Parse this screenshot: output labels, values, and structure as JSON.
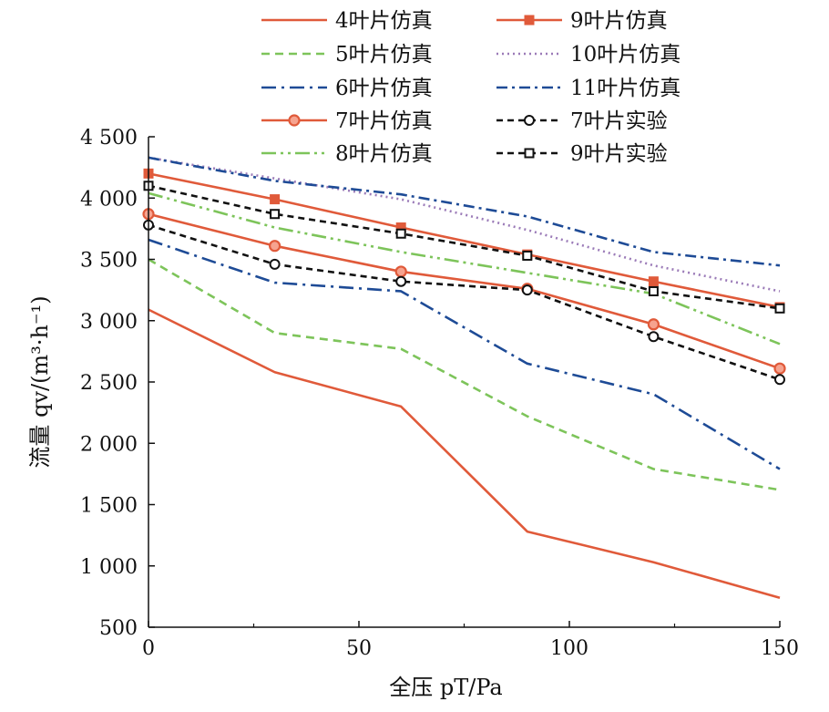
{
  "chart_data": {
    "type": "line",
    "xlabel": "全压 pT/Pa",
    "ylabel": "流量 qv/(m³·h⁻¹)",
    "xlim": [
      0,
      150
    ],
    "ylim": [
      500,
      4500
    ],
    "x_ticks": [
      0,
      50,
      100,
      150
    ],
    "x_tick_labels": [
      "0",
      "50",
      "100",
      "150"
    ],
    "y_ticks": [
      500,
      1000,
      1500,
      2000,
      2500,
      3000,
      3500,
      4000,
      4500
    ],
    "y_tick_labels": [
      "500",
      "1 000",
      "1 500",
      "2 000",
      "2 500",
      "3 000",
      "3 500",
      "4 000",
      "4 500"
    ],
    "legend_position": "top",
    "x": [
      0,
      30,
      60,
      90,
      120,
      150
    ],
    "series": [
      {
        "name": "4叶片仿真",
        "color": "#e05a3a",
        "dash": "",
        "marker": "none",
        "values": [
          3090,
          2580,
          2300,
          1280,
          1030,
          740
        ]
      },
      {
        "name": "5叶片仿真",
        "color": "#7dc45a",
        "dash": "9,6",
        "marker": "none",
        "values": [
          3500,
          2900,
          2770,
          2220,
          1790,
          1620
        ]
      },
      {
        "name": "6叶片仿真",
        "color": "#1e4b96",
        "dash": "16,6,3,6",
        "marker": "none",
        "values": [
          3660,
          3310,
          3240,
          2650,
          2400,
          1790
        ]
      },
      {
        "name": "7叶片仿真",
        "color": "#e05a3a",
        "dash": "",
        "marker": "circle",
        "values": [
          3870,
          3610,
          3400,
          3260,
          2970,
          2610
        ]
      },
      {
        "name": "8叶片仿真",
        "color": "#7dc45a",
        "dash": "16,5,3,5,3,5",
        "marker": "none",
        "values": [
          4040,
          3760,
          3560,
          3390,
          3220,
          2810
        ]
      },
      {
        "name": "9叶片仿真",
        "color": "#e05a3a",
        "dash": "",
        "marker": "square",
        "values": [
          4200,
          3990,
          3760,
          3540,
          3320,
          3110
        ]
      },
      {
        "name": "10叶片仿真",
        "color": "#9b7bb8",
        "dash": "2,4",
        "marker": "none",
        "values": [
          4330,
          4160,
          3990,
          3740,
          3450,
          3240
        ]
      },
      {
        "name": "11叶片仿真",
        "color": "#1e4b96",
        "dash": "12,5,3,5",
        "marker": "none",
        "values": [
          4330,
          4140,
          4030,
          3850,
          3560,
          3450
        ]
      },
      {
        "name": "7叶片实验",
        "color": "#111111",
        "dash": "7,5",
        "marker": "circle-open",
        "values": [
          3780,
          3460,
          3320,
          3250,
          2870,
          2520
        ]
      },
      {
        "name": "9叶片实验",
        "color": "#111111",
        "dash": "7,5",
        "marker": "square-open",
        "values": [
          4100,
          3870,
          3710,
          3530,
          3240,
          3100
        ]
      }
    ]
  }
}
